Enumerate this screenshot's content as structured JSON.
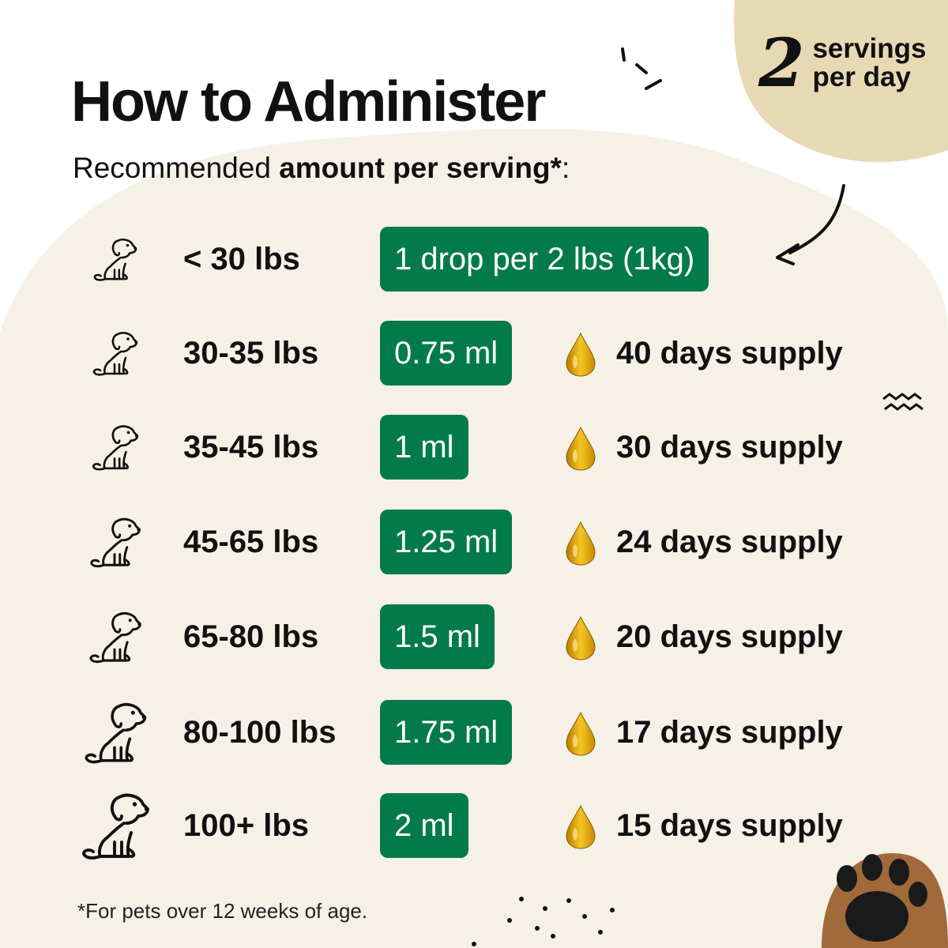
{
  "title": "How to Administer",
  "subtitle": {
    "normal": "Recommended ",
    "bold": "amount per serving*",
    "suffix": ":"
  },
  "badge": {
    "number": "2",
    "line1": "servings",
    "line2": "per day"
  },
  "colors": {
    "accent_green": "#027a4b",
    "cream_blob": "#f5f1e6",
    "badge_blob": "#e8d9b5",
    "oil_drop": "#e8b21a"
  },
  "rows": [
    {
      "weight": "< 30 lbs",
      "dose": "1 drop per 2 lbs (1kg)",
      "supply": ""
    },
    {
      "weight": "30-35 lbs",
      "dose": "0.75 ml",
      "supply": "40 days supply"
    },
    {
      "weight": "35-45 lbs",
      "dose": "1 ml",
      "supply": "30 days supply"
    },
    {
      "weight": "45-65 lbs",
      "dose": "1.25 ml",
      "supply": "24 days supply"
    },
    {
      "weight": "65-80 lbs",
      "dose": "1.5 ml",
      "supply": "20 days supply"
    },
    {
      "weight": "80-100 lbs",
      "dose": "1.75 ml",
      "supply": "17 days supply"
    },
    {
      "weight": "100+ lbs",
      "dose": "2 ml",
      "supply": "15 days supply"
    }
  ],
  "footnote": "*For pets over 12 weeks of age.",
  "icons": {
    "row_icon": "dog-icon",
    "supply_icon": "oil-drop-icon",
    "decor": [
      "arrow-icon",
      "paw-icon"
    ]
  }
}
